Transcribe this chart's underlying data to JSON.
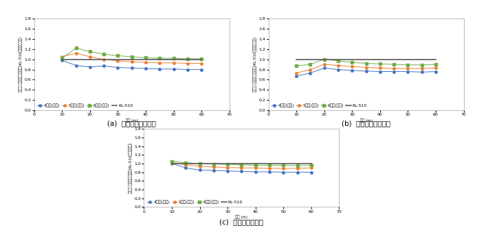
{
  "x": [
    10,
    15,
    20,
    25,
    30,
    35,
    40,
    45,
    50,
    55,
    60
  ],
  "subplot_a": {
    "caption": "(a)  계수정모멘트효과",
    "ylabel": "기준기 계수정모멘트효과(KL-510정모멘트효과)",
    "series": {
      "4축기(중기)": [
        0.98,
        0.88,
        0.85,
        0.87,
        0.84,
        0.83,
        0.82,
        0.81,
        0.81,
        0.8,
        0.8
      ],
      "5축기(중기)": [
        1.05,
        1.12,
        1.05,
        1.0,
        0.97,
        0.95,
        0.94,
        0.93,
        0.93,
        0.92,
        0.92
      ],
      "6축기(중기)": [
        1.02,
        1.22,
        1.15,
        1.1,
        1.07,
        1.05,
        1.03,
        1.02,
        1.02,
        1.01,
        1.01
      ],
      "KL-510": [
        1.0,
        1.0,
        1.0,
        1.0,
        1.0,
        1.0,
        1.0,
        1.0,
        1.0,
        1.0,
        1.0
      ]
    }
  },
  "subplot_b": {
    "caption": "(b)  계수부모멘트효과",
    "ylabel": "기준기 계수부모멘트효과(KL-510부모멘트효과)",
    "series": {
      "4축기(중기)": [
        0.67,
        0.73,
        0.83,
        0.8,
        0.78,
        0.77,
        0.76,
        0.76,
        0.76,
        0.75,
        0.76
      ],
      "5축기(중기)": [
        0.73,
        0.8,
        0.9,
        0.88,
        0.86,
        0.84,
        0.83,
        0.82,
        0.82,
        0.82,
        0.83
      ],
      "6축기(중기)": [
        0.87,
        0.9,
        1.0,
        0.97,
        0.94,
        0.92,
        0.91,
        0.9,
        0.89,
        0.89,
        0.9
      ],
      "KL-510": [
        1.0,
        1.0,
        1.0,
        1.0,
        1.0,
        1.0,
        1.0,
        1.0,
        1.0,
        1.0,
        1.0
      ]
    }
  },
  "subplot_c": {
    "caption": "(c)  계수전단력효과",
    "ylabel": "기준기 계수전단력효과(KL-510전단력효과)",
    "series": {
      "4축기(중기)": [
        1.0,
        0.9,
        0.85,
        0.84,
        0.83,
        0.82,
        0.81,
        0.81,
        0.8,
        0.8,
        0.8
      ],
      "5축기(중기)": [
        1.02,
        0.97,
        0.94,
        0.92,
        0.91,
        0.9,
        0.9,
        0.89,
        0.89,
        0.89,
        0.9
      ],
      "6축기(중기)": [
        1.05,
        1.02,
        1.0,
        0.99,
        0.98,
        0.97,
        0.96,
        0.96,
        0.96,
        0.95,
        0.96
      ],
      "KL-510": [
        1.0,
        1.0,
        1.0,
        1.0,
        1.0,
        1.0,
        1.0,
        1.0,
        1.0,
        1.0,
        1.0
      ]
    }
  },
  "colors": {
    "4축기(중기)": "#4472C4",
    "5축기(중기)": "#ED7D31",
    "6축기(중기)": "#70AD47",
    "KL-510": "#595959"
  },
  "markers": {
    "4축기(중기)": "o",
    "5축기(중기)": "o",
    "6축기(중기)": "s",
    "KL-510": "None"
  },
  "xlim": [
    0,
    70
  ],
  "xticks": [
    0,
    10,
    20,
    30,
    40,
    50,
    60,
    70
  ],
  "xlabel": "지간 (m)",
  "ylim": [
    0,
    1.8
  ],
  "yticks": [
    0,
    0.2,
    0.4,
    0.6,
    0.8,
    1.0,
    1.2,
    1.4,
    1.6,
    1.8
  ],
  "legend_fontsize": 4.5,
  "tick_fontsize": 4.5,
  "label_fontsize": 4.0,
  "caption_fontsize": 7.5,
  "linewidth": 0.7,
  "markersize": 2.5
}
